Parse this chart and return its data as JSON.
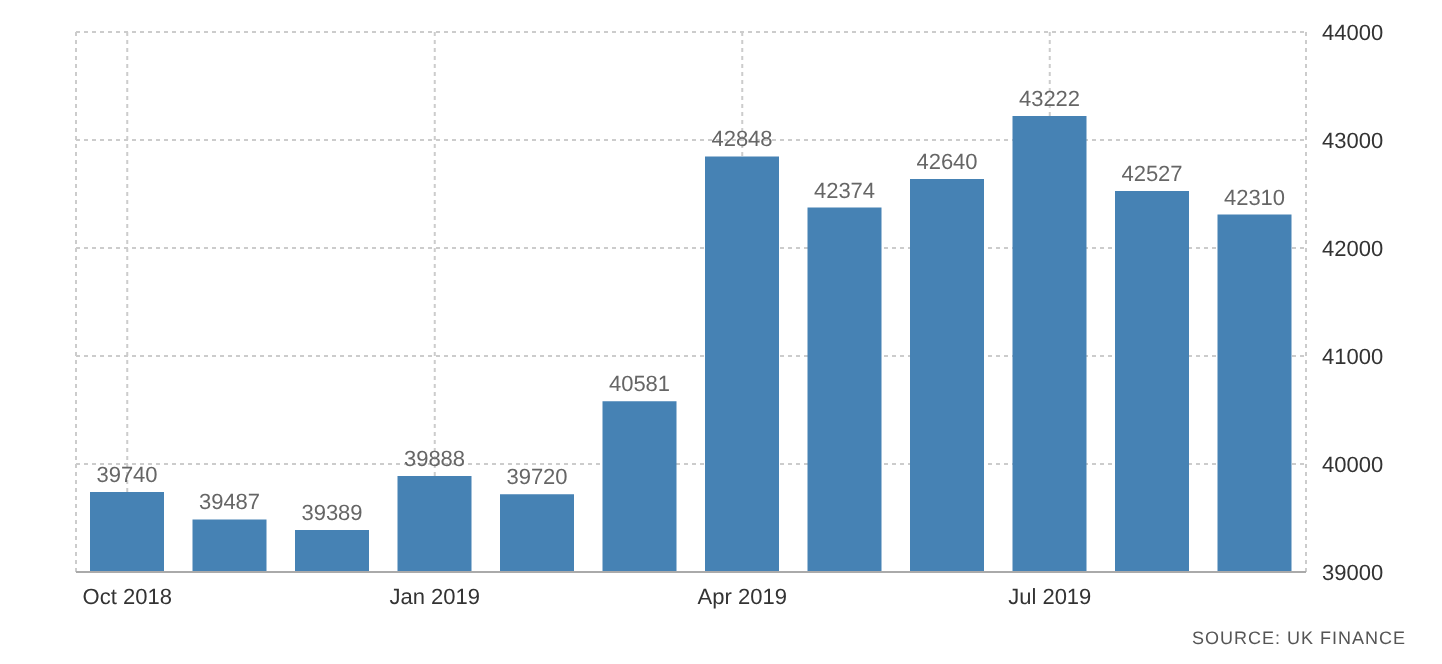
{
  "chart_data": {
    "type": "bar",
    "categories": [
      "Oct 2018",
      null,
      null,
      "Jan 2019",
      null,
      null,
      "Apr 2019",
      null,
      null,
      "Jul 2019",
      null,
      null
    ],
    "values": [
      39740,
      39487,
      39389,
      39888,
      39720,
      40581,
      42848,
      42374,
      42640,
      43222,
      42527,
      42310
    ],
    "color": "#4682b4",
    "ylim": [
      39000,
      44000
    ],
    "yticks": [
      39000,
      40000,
      41000,
      42000,
      43000,
      44000
    ],
    "grid": true,
    "data_labels": true,
    "annotations": [
      "SOURCE: UK FINANCE"
    ]
  }
}
